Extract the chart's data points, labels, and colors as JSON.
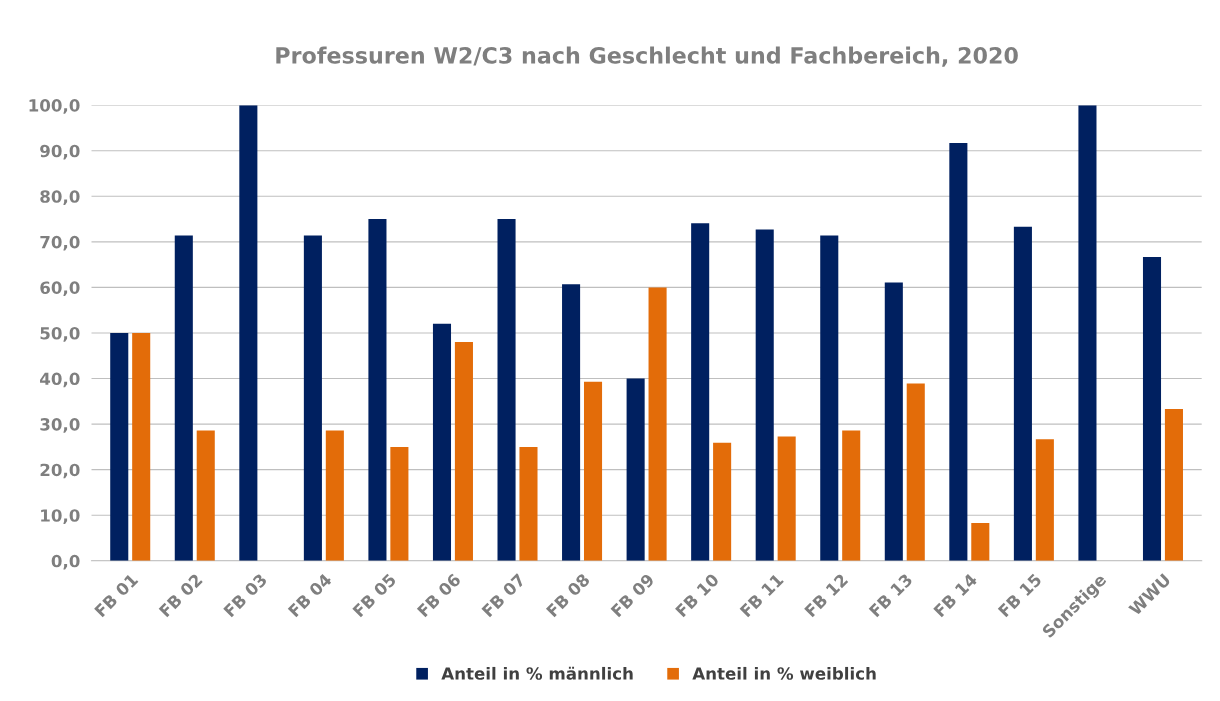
{
  "chart_data": {
    "type": "bar",
    "title": "Professuren W2/C3 nach Geschlecht und Fachbereich, 2020",
    "categories": [
      "FB 01",
      "FB 02",
      "FB 03",
      "FB 04",
      "FB 05",
      "FB 06",
      "FB 07",
      "FB 08",
      "FB 09",
      "FB 10",
      "FB 11",
      "FB 12",
      "FB 13",
      "FB 14",
      "FB 15",
      "Sonstige",
      "WWU"
    ],
    "series": [
      {
        "name": "Anteil in % männlich",
        "color": "#002060",
        "values": [
          50,
          71.4,
          100,
          71.4,
          75,
          52,
          75,
          60.7,
          40,
          74.1,
          72.7,
          71.4,
          61.1,
          91.7,
          73.3,
          100,
          66.7
        ]
      },
      {
        "name": "Anteil in % weiblich",
        "color": "#e36c09",
        "values": [
          50,
          28.6,
          0,
          28.6,
          25,
          48,
          25,
          39.3,
          60,
          25.9,
          27.3,
          28.6,
          38.9,
          8.3,
          26.7,
          0,
          33.3
        ]
      }
    ],
    "ylim": [
      0,
      100
    ],
    "yticks": [
      {
        "value": 0,
        "label": "0,0"
      },
      {
        "value": 10,
        "label": "10,0"
      },
      {
        "value": 20,
        "label": "20,0"
      },
      {
        "value": 30,
        "label": "30,0"
      },
      {
        "value": 40,
        "label": "40,0"
      },
      {
        "value": 50,
        "label": "50,0"
      },
      {
        "value": 60,
        "label": "60,0"
      },
      {
        "value": 70,
        "label": "70,0"
      },
      {
        "value": 80,
        "label": "80,0"
      },
      {
        "value": 90,
        "label": "90,0"
      },
      {
        "value": 100,
        "label": "100,0"
      }
    ],
    "grid": "y",
    "legend": "bottom"
  }
}
